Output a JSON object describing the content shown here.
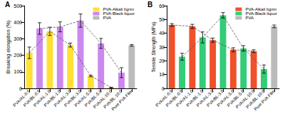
{
  "chart_data": [
    {
      "type": "bar",
      "title": "A",
      "y_label": "Breaking elongation (%)",
      "categories": [
        "PVA/AL-0.5",
        "PVA/BL-0.5",
        "PVA/AL-1.0",
        "PVA/BL-1.0",
        "PVA/AL-3.0",
        "PVA/BL-3.0",
        "PVA/AL-5.0",
        "PVA/BL-5.0",
        "PVA/AL-10.0",
        "PVA/BL-10.0",
        "Pure PVA Film"
      ],
      "series": [
        {
          "name": "PVA-Alkali lignin",
          "color": "#ffe033",
          "line_style": "dashed",
          "values": [
            215,
            null,
            345,
            null,
            262,
            null,
            75,
            null,
            5,
            null,
            null
          ],
          "errors": [
            35,
            null,
            25,
            null,
            12,
            null,
            5,
            null,
            2,
            null,
            null
          ]
        },
        {
          "name": "PVA-Black liquor",
          "color": "#cc88ee",
          "line_style": "dashed",
          "values": [
            null,
            362,
            null,
            372,
            null,
            410,
            null,
            272,
            null,
            95,
            null
          ],
          "errors": [
            null,
            35,
            null,
            30,
            null,
            40,
            null,
            30,
            null,
            30,
            null
          ]
        },
        {
          "name": "PVA",
          "color": "#bbbbbb",
          "values": [
            null,
            null,
            null,
            null,
            null,
            null,
            null,
            null,
            null,
            null,
            260
          ],
          "errors": [
            null,
            null,
            null,
            null,
            null,
            null,
            null,
            null,
            null,
            null,
            5
          ]
        }
      ],
      "ylim": [
        0,
        500
      ],
      "yticks": [
        0,
        100,
        200,
        300,
        400,
        500
      ],
      "legend": "upper right"
    },
    {
      "type": "bar",
      "title": "B",
      "y_label": "Tensile Strength (MPa)",
      "categories": [
        "PVA/AL-0.5",
        "PVA/BL-0.5",
        "PVA/AL-1.0",
        "PVA/BL-1.0",
        "PVA/AL-3.0",
        "PVA/BL-3.0",
        "PVA/AL-5.0",
        "PVA/BL-5.0",
        "PVA/AL-10.0",
        "PVA/BL-10.0",
        "Pure PVA Film"
      ],
      "series": [
        {
          "name": "PVA-Alkali lignin",
          "color": "#f0502a",
          "line_style": "dashed",
          "values": [
            46,
            null,
            45,
            null,
            35,
            null,
            28,
            null,
            27,
            null,
            null
          ],
          "errors": [
            1,
            null,
            1.5,
            null,
            1.5,
            null,
            1.5,
            null,
            1,
            null,
            null
          ]
        },
        {
          "name": "PVA-Black liquor",
          "color": "#33cc77",
          "line_style": "dashed",
          "values": [
            null,
            23,
            null,
            37,
            null,
            53,
            null,
            29,
            null,
            14,
            null
          ],
          "errors": [
            null,
            2.5,
            null,
            4,
            null,
            2,
            null,
            2,
            null,
            3,
            null
          ]
        },
        {
          "name": "PVA",
          "color": "#bbbbbb",
          "values": [
            null,
            null,
            null,
            null,
            null,
            null,
            null,
            null,
            null,
            null,
            45
          ],
          "errors": [
            null,
            null,
            null,
            null,
            null,
            null,
            null,
            null,
            null,
            null,
            1
          ]
        }
      ],
      "ylim": [
        0,
        60
      ],
      "yticks": [
        0,
        10,
        20,
        30,
        40,
        50,
        60
      ],
      "legend": "upper right"
    }
  ]
}
